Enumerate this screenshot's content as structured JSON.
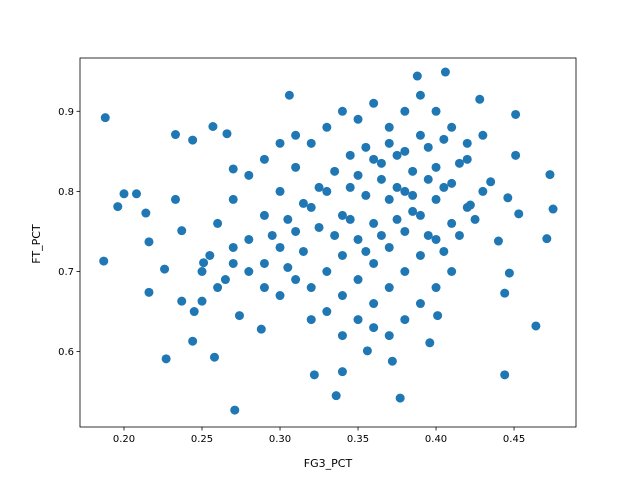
{
  "chart_data": {
    "type": "scatter",
    "x_label": "FG3_PCT",
    "y_label": "FT_PCT",
    "color": "#1f77b4",
    "xlim": [
      0.1718,
      0.4897
    ],
    "ylim": [
      0.5059,
      0.9665
    ],
    "xticks": [
      {
        "value": 0.2,
        "label": "0.20"
      },
      0.25,
      {
        "value": 0.3,
        "label": "0.30"
      },
      0.35,
      {
        "value": 0.4,
        "label": "0.40"
      },
      0.45
    ],
    "yticks": [
      0.6,
      0.7,
      0.8,
      0.9
    ],
    "x": [
      0.188,
      0.187,
      0.196,
      0.2,
      0.208,
      0.214,
      0.216,
      0.216,
      0.226,
      0.227,
      0.233,
      0.233,
      0.237,
      0.237,
      0.244,
      0.244,
      0.245,
      0.25,
      0.251,
      0.257,
      0.258,
      0.266,
      0.271,
      0.274,
      0.27,
      0.288,
      0.306,
      0.322,
      0.336,
      0.34,
      0.356,
      0.372,
      0.377,
      0.388,
      0.406,
      0.396,
      0.401,
      0.444,
      0.464,
      0.444,
      0.447,
      0.44,
      0.471,
      0.473,
      0.475,
      0.453,
      0.451,
      0.446,
      0.451,
      0.435,
      0.428,
      0.422,
      0.3,
      0.31,
      0.32,
      0.33,
      0.34,
      0.35,
      0.36,
      0.37,
      0.38,
      0.39,
      0.4,
      0.41,
      0.42,
      0.38,
      0.37,
      0.36,
      0.35,
      0.34,
      0.33,
      0.32,
      0.31,
      0.29,
      0.28,
      0.29,
      0.3,
      0.31,
      0.32,
      0.33,
      0.34,
      0.35,
      0.36,
      0.37,
      0.38,
      0.39,
      0.4,
      0.41,
      0.42,
      0.43,
      0.4,
      0.39,
      0.38,
      0.37,
      0.36,
      0.35,
      0.34,
      0.33,
      0.32,
      0.35,
      0.36,
      0.37,
      0.38,
      0.39,
      0.4,
      0.41,
      0.42,
      0.43,
      0.41,
      0.4,
      0.39,
      0.38,
      0.37,
      0.36,
      0.34,
      0.3,
      0.29,
      0.28,
      0.27,
      0.26,
      0.27,
      0.28,
      0.29,
      0.3,
      0.31,
      0.355,
      0.365,
      0.375,
      0.385,
      0.395,
      0.405,
      0.415,
      0.345,
      0.355,
      0.365,
      0.375,
      0.385,
      0.395,
      0.405,
      0.325,
      0.335,
      0.345,
      0.315,
      0.305,
      0.295,
      0.355,
      0.365,
      0.375,
      0.385,
      0.395,
      0.405,
      0.415,
      0.425,
      0.345,
      0.335,
      0.325,
      0.315,
      0.305,
      0.265,
      0.27,
      0.255,
      0.25,
      0.26
    ],
    "values": [
      0.892,
      0.713,
      0.781,
      0.797,
      0.797,
      0.773,
      0.737,
      0.674,
      0.703,
      0.591,
      0.871,
      0.79,
      0.751,
      0.663,
      0.864,
      0.613,
      0.65,
      0.663,
      0.711,
      0.881,
      0.593,
      0.872,
      0.527,
      0.645,
      0.828,
      0.628,
      0.92,
      0.571,
      0.545,
      0.575,
      0.601,
      0.588,
      0.542,
      0.944,
      0.949,
      0.611,
      0.645,
      0.571,
      0.632,
      0.673,
      0.698,
      0.738,
      0.741,
      0.821,
      0.778,
      0.772,
      0.845,
      0.792,
      0.896,
      0.812,
      0.915,
      0.783,
      0.73,
      0.75,
      0.78,
      0.8,
      0.77,
      0.82,
      0.84,
      0.86,
      0.85,
      0.87,
      0.83,
      0.81,
      0.84,
      0.8,
      0.79,
      0.76,
      0.74,
      0.72,
      0.7,
      0.68,
      0.69,
      0.71,
      0.74,
      0.77,
      0.8,
      0.83,
      0.86,
      0.88,
      0.9,
      0.89,
      0.91,
      0.88,
      0.9,
      0.92,
      0.9,
      0.88,
      0.86,
      0.87,
      0.79,
      0.77,
      0.75,
      0.73,
      0.71,
      0.69,
      0.67,
      0.65,
      0.64,
      0.64,
      0.66,
      0.68,
      0.7,
      0.72,
      0.74,
      0.76,
      0.78,
      0.8,
      0.7,
      0.68,
      0.66,
      0.64,
      0.62,
      0.63,
      0.62,
      0.67,
      0.68,
      0.7,
      0.73,
      0.76,
      0.79,
      0.82,
      0.84,
      0.86,
      0.87,
      0.855,
      0.835,
      0.845,
      0.825,
      0.855,
      0.865,
      0.835,
      0.805,
      0.795,
      0.815,
      0.805,
      0.795,
      0.815,
      0.805,
      0.755,
      0.745,
      0.765,
      0.725,
      0.705,
      0.745,
      0.725,
      0.745,
      0.765,
      0.775,
      0.745,
      0.725,
      0.745,
      0.765,
      0.845,
      0.825,
      0.805,
      0.785,
      0.765,
      0.69,
      0.71,
      0.72,
      0.7,
      0.68
    ]
  }
}
